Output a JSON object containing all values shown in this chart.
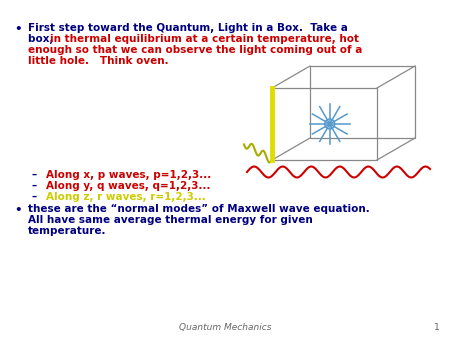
{
  "bg_color": "#ffffff",
  "dark_blue": "#000080",
  "red": "#cc0000",
  "yellow": "#cccc00",
  "dash_color1": "#cc0000",
  "dash_color2": "#cc0000",
  "dash_color3": "#cccc00",
  "dash1": "Along x, p waves, p=1,2,3...",
  "dash2": "Along y, q waves, q=1,2,3...",
  "dash3": "Along z, r waves, r=1,2,3...",
  "footer_text": "Quantum Mechanics",
  "footer_num": "1",
  "box_gray": "#888888",
  "box_yellow": "#dddd00",
  "wave_red": "#cc0000",
  "star_blue": "#5599cc",
  "wave_yellow": "#aaaa00"
}
